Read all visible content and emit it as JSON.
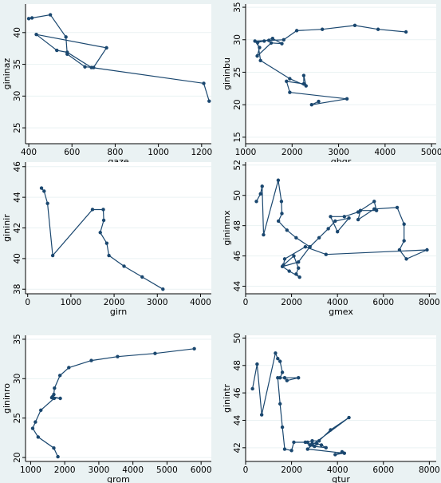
{
  "colors": {
    "background": "#eaf2f3",
    "plot_area": "#ffffff",
    "line": "#1a476f",
    "grid": "#eaf2f3"
  },
  "chart_data": [
    {
      "type": "line",
      "xlabel": "gaze",
      "ylabel": "gininaz",
      "xticks": [
        400,
        600,
        800,
        1000,
        1200
      ],
      "yticks": [
        25,
        30,
        35,
        40
      ],
      "xlim": [
        385,
        1245
      ],
      "ylim": [
        22.5,
        44.5
      ],
      "grid": true,
      "series": [
        {
          "x": [
            400,
            415,
            500,
            572,
            578,
            660,
            700,
            760,
            435,
            530,
            578,
            690,
            1210,
            1235
          ],
          "y": [
            42.2,
            42.3,
            42.8,
            39.3,
            36.6,
            34.6,
            34.5,
            37.6,
            39.7,
            37.2,
            36.9,
            34.5,
            32.0,
            29.2
          ]
        }
      ]
    },
    {
      "type": "line",
      "xlabel": "gbgr",
      "ylabel": "gininbu",
      "xticks": [
        1000,
        2000,
        3000,
        4000,
        5000
      ],
      "yticks": [
        15,
        20,
        25,
        30,
        35
      ],
      "xlim": [
        1000,
        5100
      ],
      "ylim": [
        14,
        35.5
      ],
      "grid": true,
      "series": [
        {
          "x": [
            4450,
            3850,
            3350,
            2650,
            2100,
            1820,
            1500,
            1200,
            1300,
            1250,
            1550,
            1780,
            1580,
            1400,
            1260,
            1320,
            1950,
            2300,
            2250,
            2250,
            1880,
            1950,
            3180,
            2420,
            2570
          ],
          "y": [
            31.2,
            31.6,
            32.2,
            31.6,
            31.4,
            30.0,
            29.9,
            29.8,
            28.8,
            27.5,
            29.5,
            29.4,
            30.2,
            29.8,
            29.6,
            26.8,
            24.0,
            22.9,
            24.5,
            23.2,
            23.6,
            21.9,
            20.9,
            20.0,
            20.5
          ]
        }
      ]
    },
    {
      "type": "line",
      "xlabel": "girn",
      "ylabel": "gininir",
      "xticks": [
        0,
        1000,
        2000,
        3000,
        4000
      ],
      "yticks": [
        38,
        40,
        42,
        44,
        46
      ],
      "xlim": [
        -50,
        4250
      ],
      "ylim": [
        37.7,
        46.3
      ],
      "grid": true,
      "series": [
        {
          "x": [
            320,
            380,
            460,
            580,
            1500,
            1750,
            1760,
            1680,
            1830,
            1880,
            2230,
            2650,
            3130
          ],
          "y": [
            44.6,
            44.4,
            43.6,
            40.2,
            43.2,
            43.2,
            42.5,
            41.7,
            41.0,
            40.2,
            39.5,
            38.8,
            38.0
          ]
        }
      ]
    },
    {
      "type": "line",
      "xlabel": "gmex",
      "ylabel": "gininmx",
      "xticks": [
        0,
        2000,
        4000,
        6000,
        8000
      ],
      "yticks": [
        44,
        46,
        48,
        50,
        52
      ],
      "xlim": [
        0,
        8300
      ],
      "ylim": [
        43.5,
        52.2
      ],
      "grid": true,
      "series": [
        {
          "x": [
            470,
            650,
            720,
            780,
            1420,
            1560,
            1580,
            1430,
            1800,
            2200,
            2800,
            3200,
            3600,
            3900,
            4500,
            4000,
            3700,
            4300,
            4900,
            5600,
            5700,
            5000,
            4900,
            5600,
            6600,
            6900,
            6900,
            6700,
            7000,
            7900,
            3500,
            2600,
            1700,
            1650,
            2100,
            2300,
            2200,
            2350,
            1900,
            1600,
            2300,
            2800
          ],
          "y": [
            49.6,
            50.1,
            50.6,
            47.4,
            51.0,
            49.6,
            48.8,
            48.3,
            47.7,
            47.2,
            46.6,
            47.2,
            47.8,
            48.3,
            48.5,
            47.6,
            48.6,
            48.6,
            48.9,
            49.6,
            49.0,
            49.0,
            48.4,
            49.1,
            49.2,
            48.1,
            47.0,
            46.4,
            45.8,
            46.4,
            46.1,
            46.6,
            45.8,
            45.4,
            46.0,
            45.2,
            44.8,
            44.6,
            45.0,
            45.3,
            45.6,
            46.6
          ]
        }
      ]
    },
    {
      "type": "line",
      "xlabel": "grom",
      "ylabel": "gininro",
      "xticks": [
        1000,
        2000,
        3000,
        4000,
        5000,
        6000
      ],
      "yticks": [
        20,
        25,
        30,
        35
      ],
      "xlim": [
        850,
        6300
      ],
      "ylim": [
        19.5,
        35.5
      ],
      "grid": true,
      "series": [
        {
          "x": [
            5800,
            4650,
            3550,
            2780,
            2120,
            1860,
            1700,
            1680,
            1640,
            1870,
            1620,
            1690,
            1300,
            1140,
            1060,
            1220,
            1680,
            1800
          ],
          "y": [
            33.8,
            33.2,
            32.8,
            32.3,
            31.4,
            30.4,
            28.8,
            28.0,
            27.7,
            27.5,
            27.6,
            27.5,
            26.0,
            24.5,
            23.7,
            22.6,
            21.2,
            20.1
          ]
        }
      ]
    },
    {
      "type": "line",
      "xlabel": "gtur",
      "ylabel": "ginintr",
      "xticks": [
        0,
        2000,
        4000,
        6000,
        8000
      ],
      "yticks": [
        42,
        44,
        46,
        48,
        50
      ],
      "xlim": [
        0,
        8300
      ],
      "ylim": [
        41,
        50.2
      ],
      "grid": true,
      "series": [
        {
          "x": [
            300,
            500,
            700,
            1300,
            1400,
            1500,
            1600,
            1500,
            1700,
            1800,
            2300,
            1400,
            1500,
            1600,
            1700,
            2000,
            2100,
            2600,
            2800,
            2900,
            3100,
            3300,
            3500,
            3000,
            2800,
            2700,
            2900,
            3200,
            3700,
            4500,
            2900,
            2700,
            4300,
            3900,
            4200
          ],
          "y": [
            46.3,
            48.1,
            44.4,
            48.9,
            48.5,
            48.3,
            47.5,
            47.1,
            47.1,
            46.9,
            47.1,
            47.1,
            45.2,
            43.5,
            41.9,
            41.8,
            42.4,
            42.4,
            42.2,
            42.3,
            42.3,
            42.2,
            42.0,
            42.1,
            42.2,
            42.4,
            42.5,
            42.5,
            43.3,
            44.2,
            42.2,
            41.9,
            41.6,
            41.5,
            41.7
          ]
        }
      ]
    }
  ]
}
